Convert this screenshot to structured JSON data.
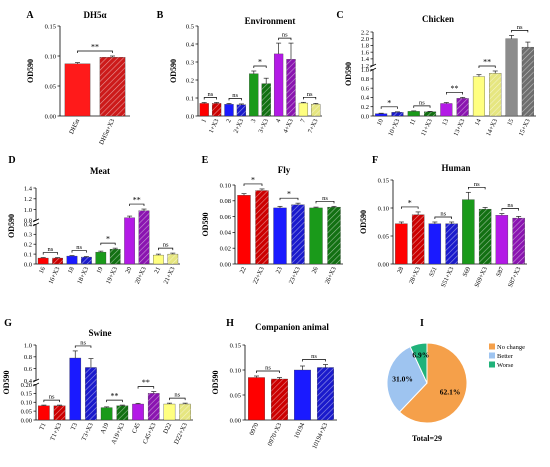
{
  "chart_data": [
    {
      "panel": "A",
      "title": "DH5α",
      "type": "bar",
      "ylabel": "OD590",
      "ylim": [
        0,
        0.15
      ],
      "yticks": [
        "0.00",
        "0.05",
        "0.10",
        "0.15"
      ],
      "categories": [
        "DH5α",
        "DH5α+X3"
      ],
      "values": [
        0.087,
        0.098
      ],
      "errors": [
        0.002,
        0.002
      ],
      "colors": [
        "#ff1a1a",
        "#cc1a1a"
      ],
      "hatched": [
        false,
        true
      ],
      "significance": [
        {
          "from": 0,
          "to": 1,
          "label": "**"
        }
      ]
    },
    {
      "panel": "B",
      "title": "Environment",
      "type": "bar",
      "ylabel": "OD590",
      "ylim": [
        0,
        0.5
      ],
      "yticks": [
        "0.0",
        "0.1",
        "0.2",
        "0.3",
        "0.4",
        "0.5"
      ],
      "categories": [
        "1",
        "1+X3",
        "2",
        "2+X3",
        "3",
        "3+X3",
        "4",
        "4+X3",
        "7",
        "7+X3"
      ],
      "values": [
        0.07,
        0.07,
        0.065,
        0.062,
        0.235,
        0.18,
        0.345,
        0.315,
        0.072,
        0.066
      ],
      "errors": [
        0.005,
        0.005,
        0.005,
        0.005,
        0.015,
        0.03,
        0.06,
        0.09,
        0.004,
        0.004
      ],
      "colors": [
        "#ff0000",
        "#cc0000",
        "#1a1aff",
        "#1a1acc",
        "#1a9a1a",
        "#127012",
        "#b31ae6",
        "#8a14b0",
        "#ffff80",
        "#e6e680"
      ],
      "hatched": [
        false,
        true,
        false,
        true,
        false,
        true,
        false,
        true,
        false,
        true
      ],
      "significance": [
        {
          "from": 0,
          "to": 1,
          "label": "ns"
        },
        {
          "from": 2,
          "to": 3,
          "label": "ns"
        },
        {
          "from": 4,
          "to": 5,
          "label": "*"
        },
        {
          "from": 6,
          "to": 7,
          "label": "ns"
        },
        {
          "from": 8,
          "to": 9,
          "label": "ns"
        }
      ]
    },
    {
      "panel": "C",
      "title": "Chicken",
      "type": "bar",
      "ylabel": "OD590",
      "broken_axis": true,
      "yticks": [
        "0.0",
        "0.2",
        "0.4",
        "0.6",
        "0.8",
        "1.0",
        "1.2",
        "1.4",
        "1.6",
        "1.8",
        "2.0",
        "2.2"
      ],
      "categories": [
        "10",
        "10+X3",
        "11",
        "11+X3",
        "13",
        "13+X3",
        "14",
        "14+X3",
        "15",
        "15+X3"
      ],
      "values": [
        0.05,
        0.08,
        0.1,
        0.09,
        0.27,
        0.38,
        0.85,
        0.92,
        2.0,
        1.75
      ],
      "errors": [
        0.01,
        0.01,
        0.01,
        0.01,
        0.02,
        0.02,
        0.04,
        0.05,
        0.1,
        0.15
      ],
      "colors": [
        "#1a1aff",
        "#1a1acc",
        "#1a9a1a",
        "#127012",
        "#b31ae6",
        "#8a14b0",
        "#ffff80",
        "#e6e680",
        "#8c8c8c",
        "#6e6e6e"
      ],
      "hatched": [
        false,
        true,
        false,
        true,
        false,
        true,
        false,
        true,
        false,
        true
      ],
      "significance": [
        {
          "from": 0,
          "to": 1,
          "label": "*"
        },
        {
          "from": 2,
          "to": 3,
          "label": "ns"
        },
        {
          "from": 4,
          "to": 5,
          "label": "**"
        },
        {
          "from": 6,
          "to": 7,
          "label": "**"
        },
        {
          "from": 8,
          "to": 9,
          "label": "ns"
        }
      ]
    },
    {
      "panel": "D",
      "title": "Meat",
      "type": "bar",
      "ylabel": "OD590",
      "broken_axis": true,
      "yticks": [
        "0.0",
        "0.1",
        "0.2",
        "0.3",
        "0.4",
        "0.8",
        "1.0",
        "1.2",
        "1.4"
      ],
      "categories": [
        "16",
        "16+X3",
        "18",
        "18+X3",
        "19",
        "19+X3",
        "20",
        "20+X3",
        "21",
        "21+X3"
      ],
      "values": [
        0.06,
        0.06,
        0.08,
        0.07,
        0.12,
        0.15,
        0.85,
        0.98,
        0.09,
        0.1
      ],
      "errors": [
        0.005,
        0.005,
        0.005,
        0.005,
        0.01,
        0.01,
        0.03,
        0.03,
        0.01,
        0.01
      ],
      "colors": [
        "#ff0000",
        "#cc0000",
        "#1a1aff",
        "#1a1acc",
        "#1a9a1a",
        "#127012",
        "#b31ae6",
        "#8a14b0",
        "#ffff80",
        "#e6e680"
      ],
      "hatched": [
        false,
        true,
        false,
        true,
        false,
        true,
        false,
        true,
        false,
        true
      ],
      "significance": [
        {
          "from": 0,
          "to": 1,
          "label": "ns"
        },
        {
          "from": 2,
          "to": 3,
          "label": "ns"
        },
        {
          "from": 4,
          "to": 5,
          "label": "*"
        },
        {
          "from": 6,
          "to": 7,
          "label": "**"
        },
        {
          "from": 8,
          "to": 9,
          "label": "ns"
        }
      ]
    },
    {
      "panel": "E",
      "title": "Fly",
      "type": "bar",
      "ylabel": "OD590",
      "ylim": [
        0,
        0.1
      ],
      "yticks": [
        "0.00",
        "0.02",
        "0.04",
        "0.06",
        "0.08",
        "0.10"
      ],
      "categories": [
        "22",
        "22+X3",
        "23",
        "23+X3",
        "26",
        "26+X3"
      ],
      "values": [
        0.087,
        0.093,
        0.071,
        0.075,
        0.071,
        0.072
      ],
      "errors": [
        0.002,
        0.002,
        0.002,
        0.002,
        0.001,
        0.001
      ],
      "colors": [
        "#ff0000",
        "#cc0000",
        "#1a1aff",
        "#1a1acc",
        "#1a9a1a",
        "#127012"
      ],
      "hatched": [
        false,
        true,
        false,
        true,
        false,
        true
      ],
      "significance": [
        {
          "from": 0,
          "to": 1,
          "label": "*"
        },
        {
          "from": 2,
          "to": 3,
          "label": "*"
        },
        {
          "from": 4,
          "to": 5,
          "label": "ns"
        }
      ]
    },
    {
      "panel": "F",
      "title": "Human",
      "type": "bar",
      "ylabel": "OD590",
      "ylim": [
        0,
        0.15
      ],
      "yticks": [
        "0.00",
        "0.05",
        "0.10",
        "0.15"
      ],
      "categories": [
        "28",
        "28+X3",
        "S51",
        "S51+X3",
        "S69",
        "S69+X3",
        "S87",
        "S87+X3"
      ],
      "values": [
        0.072,
        0.088,
        0.072,
        0.072,
        0.115,
        0.098,
        0.087,
        0.082
      ],
      "errors": [
        0.003,
        0.005,
        0.003,
        0.003,
        0.013,
        0.003,
        0.003,
        0.003
      ],
      "colors": [
        "#ff0000",
        "#cc0000",
        "#1a1aff",
        "#1a1acc",
        "#1a9a1a",
        "#127012",
        "#b31ae6",
        "#8a14b0"
      ],
      "hatched": [
        false,
        true,
        false,
        true,
        false,
        true,
        false,
        true
      ],
      "significance": [
        {
          "from": 0,
          "to": 1,
          "label": "*"
        },
        {
          "from": 2,
          "to": 3,
          "label": "ns"
        },
        {
          "from": 4,
          "to": 5,
          "label": "ns"
        },
        {
          "from": 6,
          "to": 7,
          "label": "ns"
        }
      ]
    },
    {
      "panel": "G",
      "title": "Swine",
      "type": "bar",
      "ylabel": "OD590",
      "broken_axis": true,
      "yticks": [
        "0.00",
        "0.05",
        "0.10",
        "0.15",
        "0.20",
        "0.4",
        "0.6",
        "0.8",
        "1.0"
      ],
      "categories": [
        "T1",
        "T1+X3",
        "T3",
        "T3+X3",
        "A19",
        "A19+X3",
        "C45",
        "C45+X3",
        "D22",
        "D22+X3"
      ],
      "values": [
        0.08,
        0.08,
        0.78,
        0.62,
        0.07,
        0.08,
        0.09,
        0.15,
        0.09,
        0.09
      ],
      "errors": [
        0.004,
        0.004,
        0.12,
        0.15,
        0.004,
        0.004,
        0.004,
        0.01,
        0.005,
        0.005
      ],
      "colors": [
        "#ff0000",
        "#cc0000",
        "#1a1aff",
        "#1a1acc",
        "#1a9a1a",
        "#127012",
        "#b31ae6",
        "#8a14b0",
        "#ffff80",
        "#e6e680"
      ],
      "hatched": [
        false,
        true,
        false,
        true,
        false,
        true,
        false,
        true,
        false,
        true
      ],
      "significance": [
        {
          "from": 0,
          "to": 1,
          "label": "ns"
        },
        {
          "from": 2,
          "to": 3,
          "label": "ns"
        },
        {
          "from": 4,
          "to": 5,
          "label": "**"
        },
        {
          "from": 6,
          "to": 7,
          "label": "**"
        },
        {
          "from": 8,
          "to": 9,
          "label": "ns"
        }
      ]
    },
    {
      "panel": "H",
      "title": "Companion animal",
      "type": "bar",
      "ylabel": "OD590",
      "ylim": [
        0,
        0.15
      ],
      "yticks": [
        "0.00",
        "0.05",
        "0.10",
        "0.15"
      ],
      "categories": [
        "0970",
        "0970+X3",
        "10194",
        "10194+X3"
      ],
      "values": [
        0.085,
        0.082,
        0.1,
        0.105
      ],
      "errors": [
        0.003,
        0.003,
        0.008,
        0.006
      ],
      "colors": [
        "#ff0000",
        "#cc0000",
        "#1a1aff",
        "#1a1acc"
      ],
      "hatched": [
        false,
        true,
        false,
        true
      ],
      "significance": [
        {
          "from": 0,
          "to": 1,
          "label": "ns"
        },
        {
          "from": 2,
          "to": 3,
          "label": "ns"
        }
      ]
    },
    {
      "panel": "I",
      "type": "pie",
      "slices": [
        {
          "label": "No change",
          "value": 62.1,
          "text": "62.1%",
          "color": "#f5a04a"
        },
        {
          "label": "Better",
          "value": 31.0,
          "text": "31.0%",
          "color": "#9ec4f0"
        },
        {
          "label": "Worse",
          "value": 6.9,
          "text": "6.9%",
          "color": "#20b27a"
        }
      ],
      "legend": "top-right",
      "total_label": "Total=29"
    }
  ]
}
